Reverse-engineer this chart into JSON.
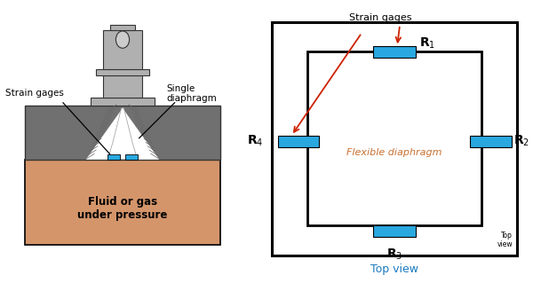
{
  "bg_color": "#ffffff",
  "left_labels": {
    "strain_gages": "Strain gages",
    "single_diaphragm": "Single\ndiaphragm",
    "fluid": "Fluid or gas\nunder pressure"
  },
  "right_labels": {
    "strain_gages": "Strain gages",
    "flexible": "Flexible diaphragm",
    "top_view_label": "Top view",
    "top_view_corner": "Top\nview"
  },
  "colors": {
    "gray_body": "#b0b0b0",
    "gray_dark": "#707070",
    "tan": "#d4956a",
    "blue_gage": "#29a8e0",
    "red_arrow": "#cc2200",
    "black": "#000000",
    "white": "#ffffff",
    "outline": "#333333",
    "top_view_text": "#1a7abf",
    "flexible_text": "#c87030"
  }
}
